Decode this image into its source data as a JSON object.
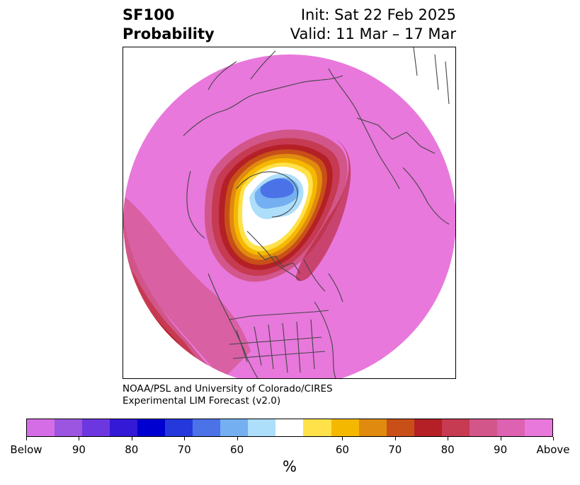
{
  "title": {
    "left_line1": "SF100",
    "left_line2": "Probability",
    "right_line1": "Init: Sat 22 Feb 2025",
    "right_line2": "Valid: 11 Mar – 17 Mar"
  },
  "credit": {
    "line1": "NOAA/PSL and University of Colorado/CIRES",
    "line2": "Experimental LIM Forecast (v2.0)"
  },
  "colorbar": {
    "units": "%",
    "colors": [
      "#d56ee6",
      "#9b55e0",
      "#6d37e0",
      "#3419d6",
      "#0000d0",
      "#2438dc",
      "#4c72e8",
      "#74aff1",
      "#addefa",
      "#ffffff",
      "#ffe14a",
      "#f5b800",
      "#e08a10",
      "#c85018",
      "#b42026",
      "#c63a52",
      "#d2568a",
      "#dd62b2",
      "#e878dc"
    ],
    "tick_labels": [
      "Below",
      "90",
      "80",
      "70",
      "60",
      "60",
      "70",
      "80",
      "90",
      "Above"
    ]
  },
  "map": {
    "background_fill": "#e878dc",
    "contour_colors": [
      "#d2568a",
      "#c63a52",
      "#b42026",
      "#c85018",
      "#e08a10",
      "#f5b800",
      "#ffe14a",
      "#ffffff",
      "#addefa",
      "#74aff1",
      "#4c72e8"
    ],
    "coastline_color": "#444444"
  }
}
